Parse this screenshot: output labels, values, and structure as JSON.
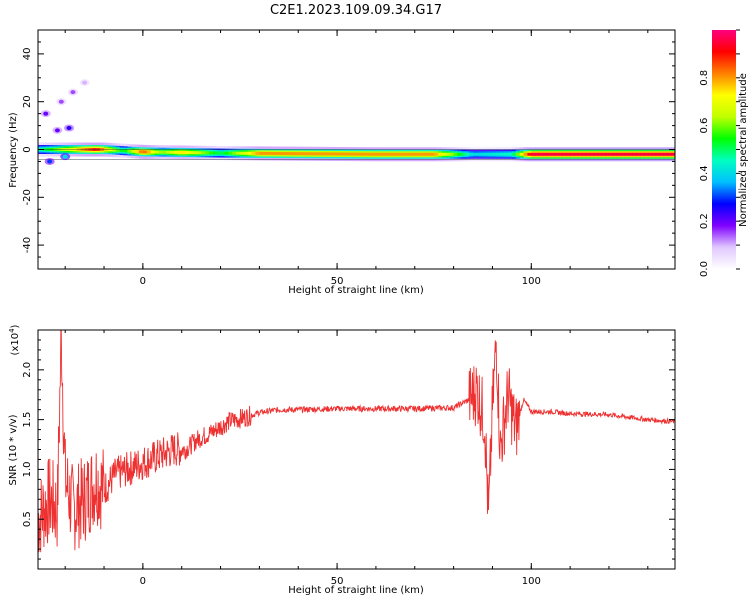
{
  "figure": {
    "title": "C2E1.2023.109.09.34.G17"
  },
  "chart_data": [
    {
      "type": "heatmap",
      "xlabel": "Height of straight line (km)",
      "ylabel": "Frequency (Hz)",
      "xlim": [
        -27,
        137
      ],
      "ylim": [
        -50,
        50
      ],
      "xticks": [
        0,
        50,
        100
      ],
      "yticks": [
        -40,
        -20,
        0,
        20,
        40
      ],
      "colorbar": {
        "label": "Normalized spectral amplitude",
        "ticks": [
          "0.0",
          "0.2",
          "0.4",
          "0.6",
          "0.8"
        ],
        "range": [
          0,
          1
        ],
        "colors": [
          "#ffffff",
          "#e0c8ff",
          "#8000ff",
          "#0000ff",
          "#00c0ff",
          "#00ffc0",
          "#00ff00",
          "#c0ff00",
          "#ffff00",
          "#ff8000",
          "#ff0000",
          "#ff0080"
        ]
      },
      "band": {
        "center_hz": [
          [
            -27,
            0
          ],
          [
            -10,
            0
          ],
          [
            0,
            -1
          ],
          [
            20,
            -1.5
          ],
          [
            60,
            -2
          ],
          [
            137,
            -2
          ]
        ],
        "amplitude": [
          [
            -27,
            0.45
          ],
          [
            -12,
            0.9
          ],
          [
            -5,
            0.5
          ],
          [
            0,
            0.85
          ],
          [
            5,
            0.6
          ],
          [
            10,
            0.75
          ],
          [
            20,
            0.5
          ],
          [
            30,
            0.8
          ],
          [
            75,
            0.8
          ],
          [
            85,
            0.4
          ],
          [
            95,
            0.45
          ],
          [
            100,
            0.95
          ],
          [
            137,
            0.95
          ]
        ]
      },
      "blobs": [
        {
          "x": -25,
          "f": 15,
          "a": 0.2
        },
        {
          "x": -21,
          "f": 20,
          "a": 0.15
        },
        {
          "x": -18,
          "f": 24,
          "a": 0.15
        },
        {
          "x": -22,
          "f": 8,
          "a": 0.2
        },
        {
          "x": -19,
          "f": 9,
          "a": 0.25
        },
        {
          "x": -24,
          "f": -5,
          "a": 0.3
        },
        {
          "x": -20,
          "f": -3,
          "a": 0.4
        },
        {
          "x": -15,
          "f": 28,
          "a": 0.1
        }
      ]
    },
    {
      "type": "line",
      "xlabel": "Height of straight line (km)",
      "ylabel": "SNR (10 * v/v)",
      "scale_note": "(x10",
      "scale_exp": "4",
      "scale_close": ")",
      "xlim": [
        -27,
        137
      ],
      "ylim": [
        0.0,
        2.4
      ],
      "xticks": [
        0,
        50,
        100
      ],
      "yticks": [
        "0.5",
        "1.0",
        "1.5",
        "2.0"
      ],
      "series": [
        {
          "color": "#ee3030",
          "x": [
            -27,
            -24,
            -22,
            -21,
            -20,
            -18,
            -15,
            -12,
            -10,
            -7,
            -4,
            -1,
            2,
            5,
            8,
            11,
            14,
            18,
            22,
            26,
            30,
            35,
            40,
            50,
            60,
            70,
            80,
            84,
            86,
            88,
            89,
            90,
            91,
            92,
            94,
            96,
            98,
            100,
            105,
            110,
            120,
            130,
            137
          ],
          "y": [
            0.5,
            0.7,
            0.6,
            2.4,
            0.9,
            0.6,
            0.7,
            0.9,
            0.8,
            0.95,
            1.0,
            1.05,
            1.1,
            1.15,
            1.2,
            1.2,
            1.3,
            1.38,
            1.48,
            1.52,
            1.57,
            1.6,
            1.6,
            1.61,
            1.61,
            1.61,
            1.62,
            1.7,
            1.8,
            1.5,
            0.5,
            1.6,
            2.3,
            1.2,
            1.75,
            1.4,
            1.7,
            1.58,
            1.58,
            1.56,
            1.55,
            1.5,
            1.48
          ]
        }
      ]
    }
  ]
}
